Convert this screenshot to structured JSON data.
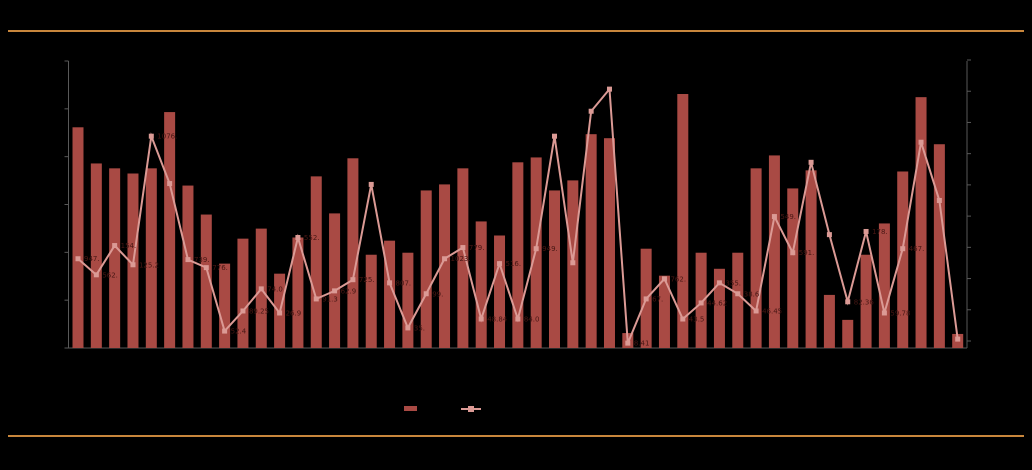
{
  "colors": {
    "background": "#000000",
    "bar": "#a94a44",
    "line": "#db9a95",
    "marker": "#db9a95",
    "data_label": "#481714",
    "axis": "#595959",
    "horizontal_rule": "#c8863c"
  },
  "legend": {
    "bar_swatch_color": "#a94a44",
    "line_swatch_color": "#db9a95",
    "labels_visible": false
  },
  "chart_data": {
    "type": "bar",
    "subtype": "combo-bar-line",
    "note": "Axis tick labels, title, category labels and legend text are rendered black-on-black in the source image and are not legible; values below are percent of plot height read from pixels. Visible data labels are listed in point_labels.",
    "n_points": 49,
    "x": [
      1,
      2,
      3,
      4,
      5,
      6,
      7,
      8,
      9,
      10,
      11,
      12,
      13,
      14,
      15,
      16,
      17,
      18,
      19,
      20,
      21,
      22,
      23,
      24,
      25,
      26,
      27,
      28,
      29,
      30,
      31,
      32,
      33,
      34,
      35,
      36,
      37,
      38,
      39,
      40,
      41,
      42,
      43,
      44,
      45,
      46,
      47,
      48,
      49
    ],
    "series": [
      {
        "name": "bars",
        "type": "bar",
        "values": [
          76.9,
          64.3,
          62.6,
          60.8,
          62.6,
          82.2,
          56.6,
          46.5,
          29.4,
          38.1,
          41.6,
          25.9,
          38.5,
          59.8,
          46.9,
          66.1,
          32.5,
          37.4,
          33.2,
          54.9,
          57.0,
          62.6,
          44.1,
          39.2,
          64.7,
          66.4,
          54.9,
          58.4,
          74.5,
          73.1,
          5.2,
          34.6,
          25.2,
          88.5,
          33.2,
          27.6,
          33.2,
          62.6,
          67.1,
          55.6,
          61.9,
          18.5,
          9.8,
          32.5,
          43.4,
          61.5,
          87.4,
          71.0,
          4.9
        ]
      },
      {
        "name": "line",
        "type": "line",
        "values": [
          31.1,
          25.5,
          35.7,
          29.0,
          73.8,
          57.3,
          30.8,
          28.0,
          5.9,
          12.9,
          20.6,
          12.2,
          38.5,
          17.1,
          19.9,
          23.8,
          57.0,
          22.7,
          7.0,
          18.9,
          31.1,
          35.0,
          10.1,
          29.4,
          10.1,
          34.6,
          73.8,
          29.7,
          82.5,
          90.2,
          1.7,
          17.1,
          24.1,
          10.1,
          15.7,
          22.7,
          18.9,
          12.9,
          45.8,
          33.2,
          64.7,
          39.5,
          16.1,
          40.6,
          12.2,
          34.6,
          71.7,
          51.4,
          3.1
        ]
      }
    ],
    "point_labels": [
      {
        "i": 1,
        "text": "947."
      },
      {
        "i": 2,
        "text": "562."
      },
      {
        "i": 3,
        "text": "154."
      },
      {
        "i": 4,
        "text": "125.2"
      },
      {
        "i": 5,
        "text": "1076."
      },
      {
        "i": 7,
        "text": "739."
      },
      {
        "i": 8,
        "text": "776."
      },
      {
        "i": 9,
        "text": "52.4"
      },
      {
        "i": 10,
        "text": "89.25"
      },
      {
        "i": 11,
        "text": "74.0"
      },
      {
        "i": 12,
        "text": "26.9"
      },
      {
        "i": 13,
        "text": "552."
      },
      {
        "i": 14,
        "text": "91.3"
      },
      {
        "i": 15,
        "text": "62.9"
      },
      {
        "i": 16,
        "text": "725."
      },
      {
        "i": 18,
        "text": "807."
      },
      {
        "i": 19,
        "text": "35."
      },
      {
        "i": 20,
        "text": "99."
      },
      {
        "i": 21,
        "text": "1023."
      },
      {
        "i": 22,
        "text": "779."
      },
      {
        "i": 23,
        "text": "48.84"
      },
      {
        "i": 24,
        "text": "516."
      },
      {
        "i": 25,
        "text": "84.0"
      },
      {
        "i": 26,
        "text": "949."
      },
      {
        "i": 31,
        "text": "8.41"
      },
      {
        "i": 32,
        "text": "67."
      },
      {
        "i": 33,
        "text": "762."
      },
      {
        "i": 34,
        "text": "43.5"
      },
      {
        "i": 35,
        "text": "44.62"
      },
      {
        "i": 36,
        "text": "355."
      },
      {
        "i": 37,
        "text": "38.6"
      },
      {
        "i": 38,
        "text": "46.45"
      },
      {
        "i": 39,
        "text": "549."
      },
      {
        "i": 40,
        "text": "591."
      },
      {
        "i": 43,
        "text": "82.36"
      },
      {
        "i": 44,
        "text": "178."
      },
      {
        "i": 45,
        "text": "59.78"
      },
      {
        "i": 46,
        "text": "467."
      }
    ],
    "title": "",
    "xlabel": "",
    "ylabel": "",
    "ylim_percent": [
      0,
      100
    ],
    "grid": false,
    "legend_position": "bottom-center",
    "left_axis_tick_count": 7,
    "right_axis_tick_count": 10
  }
}
